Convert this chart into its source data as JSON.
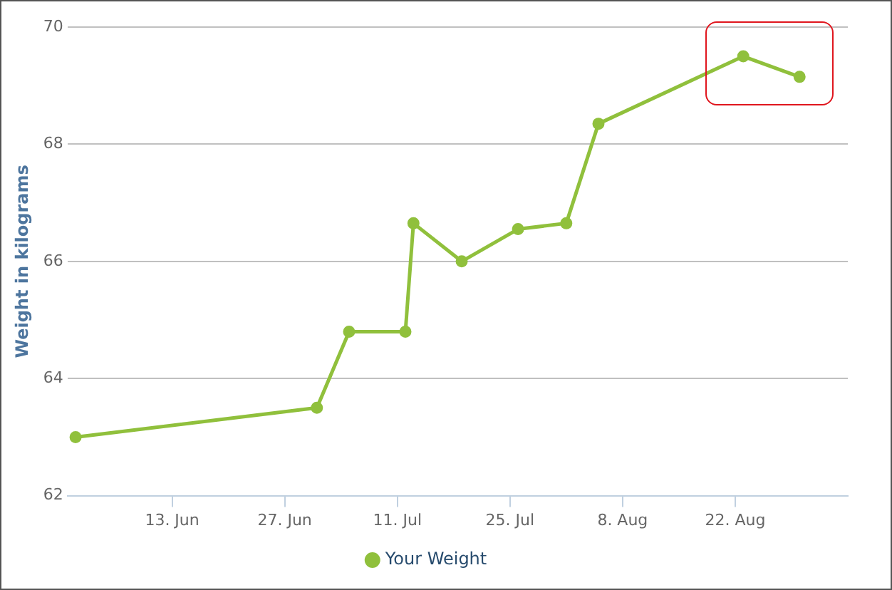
{
  "chart_data": {
    "type": "line",
    "ylabel": "Weight in kilograms",
    "x": [
      "--06-01",
      "--07-01",
      "--07-05",
      "--07-12",
      "--07-13",
      "--07-19",
      "--07-26",
      "--08-01",
      "--08-05",
      "--08-23",
      "--08-30"
    ],
    "series": [
      {
        "name": "Your Weight",
        "color": "#90c03c",
        "values": [
          63.0,
          63.5,
          64.8,
          64.8,
          66.65,
          66.0,
          66.55,
          66.65,
          68.35,
          69.5,
          69.15
        ]
      }
    ],
    "xlim": [
      "--05-31",
      "--09-05"
    ],
    "xticks": [
      {
        "value": "--06-13",
        "label": "13. Jun"
      },
      {
        "value": "--06-27",
        "label": "27. Jun"
      },
      {
        "value": "--07-11",
        "label": "11. Jul"
      },
      {
        "value": "--07-25",
        "label": "25. Jul"
      },
      {
        "value": "--08-08",
        "label": "8. Aug"
      },
      {
        "value": "--08-22",
        "label": "22. Aug"
      }
    ],
    "ylim": [
      62,
      70
    ],
    "yticks": [
      62,
      64,
      66,
      68,
      70
    ],
    "grid": "y",
    "legend": "bottom",
    "marker": "circle",
    "line_style": "solid"
  }
}
